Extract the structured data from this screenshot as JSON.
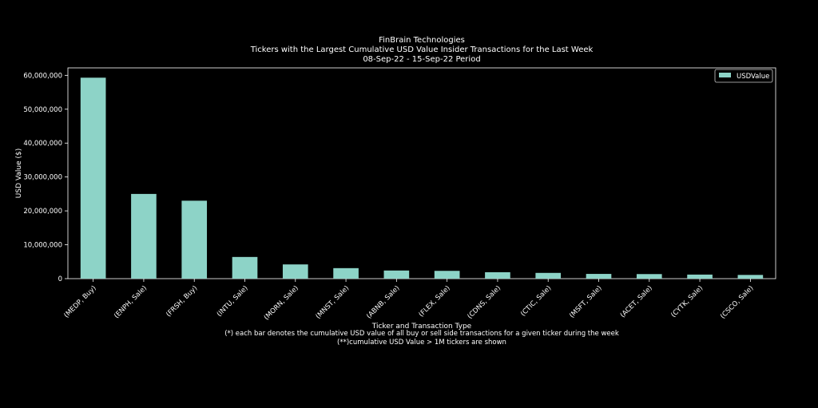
{
  "chart_data": {
    "type": "bar",
    "title_lines": [
      "FinBrain Technologies",
      "Tickers with the Largest Cumulative USD Value Insider Transactions for the Last Week",
      "08-Sep-22 - 15-Sep-22 Period"
    ],
    "xlabel": "Ticker and Transaction Type",
    "ylabel": "USD Value ($)",
    "footnotes": [
      "(*) each bar denotes the cumulative USD value of all buy or sell side transactions for a given ticker during the week",
      "(**)cumulative USD Value > 1M tickers are shown"
    ],
    "categories": [
      "(MEDP, Buy)",
      "(ENPH, Sale)",
      "(FRSH, Buy)",
      "(INTU, Sale)",
      "(MORN, Sale)",
      "(MNST, Sale)",
      "(ABNB, Sale)",
      "(FLEX, Sale)",
      "(CDNS, Sale)",
      "(CTIC, Sale)",
      "(MSFT, Sale)",
      "(ACET, Sale)",
      "(CYTK, Sale)",
      "(CSCO, Sale)"
    ],
    "series": [
      {
        "name": "USDValue",
        "color": "#8dd3c7",
        "values": [
          59300000,
          25000000,
          23000000,
          6400000,
          4200000,
          3100000,
          2400000,
          2300000,
          1900000,
          1700000,
          1400000,
          1350000,
          1200000,
          1100000
        ]
      }
    ],
    "yticks": [
      0,
      10000000,
      20000000,
      30000000,
      40000000,
      50000000,
      60000000
    ],
    "ytick_labels": [
      "0",
      "10,000,000",
      "20,000,000",
      "30,000,000",
      "40,000,000",
      "50,000,000",
      "60,000,000"
    ],
    "ylim": [
      0,
      62200000
    ],
    "legend_position": "top-right",
    "grid": false,
    "background": "#000000"
  }
}
